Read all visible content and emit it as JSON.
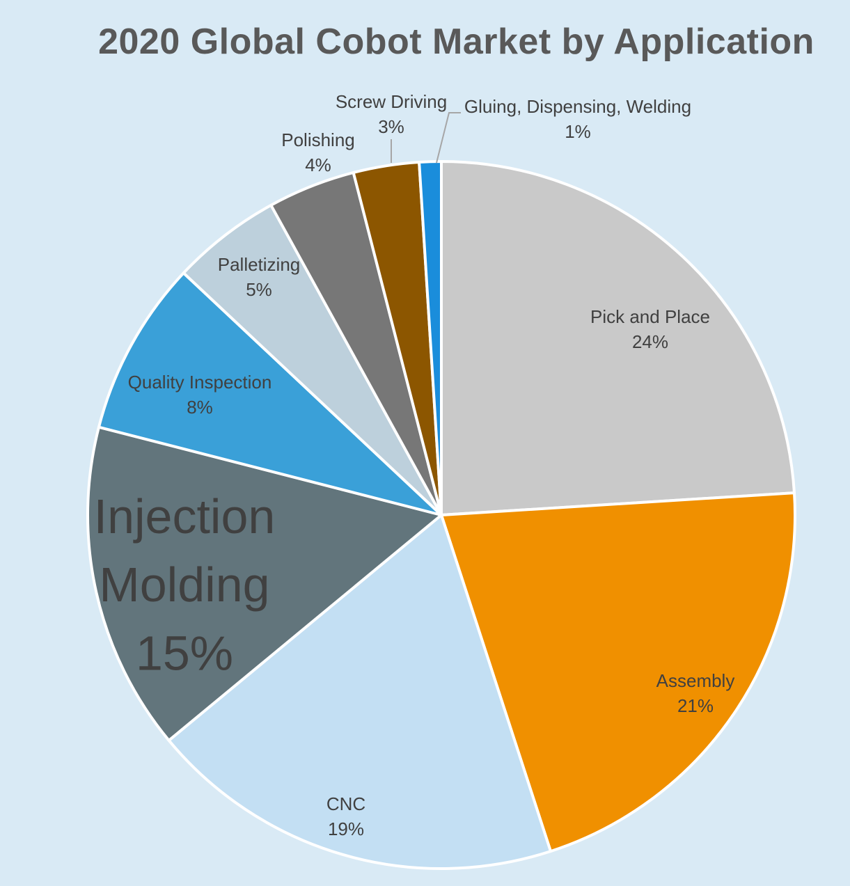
{
  "chart_data": {
    "type": "pie",
    "title": "2020 Global Cobot Market by Application",
    "slices": [
      {
        "name": "Pick and Place",
        "value": 24,
        "label": "24%",
        "color": "#c9c9c9"
      },
      {
        "name": "Assembly",
        "value": 21,
        "label": "21%",
        "color": "#f09000"
      },
      {
        "name": "CNC",
        "value": 19,
        "label": "19%",
        "color": "#c3dff3"
      },
      {
        "name": "Injection Molding",
        "value": 15,
        "label": "15%",
        "color": "#62757c",
        "highlight": true
      },
      {
        "name": "Quality Inspection",
        "value": 8,
        "label": "8%",
        "color": "#3aa0d8"
      },
      {
        "name": "Palletizing",
        "value": 5,
        "label": "5%",
        "color": "#bdd0dc"
      },
      {
        "name": "Polishing",
        "value": 4,
        "label": "4%",
        "color": "#777777"
      },
      {
        "name": "Screw Driving",
        "value": 3,
        "label": "3%",
        "color": "#8c5600"
      },
      {
        "name": "Gluing, Dispensing, Welding",
        "value": 1,
        "label": "1%",
        "color": "#1a8ddb"
      }
    ],
    "start_angle_deg": 0,
    "direction": "clockwise",
    "legend": "none",
    "background_color": "#d9eaf5",
    "slice_border_color": "#ffffff"
  }
}
